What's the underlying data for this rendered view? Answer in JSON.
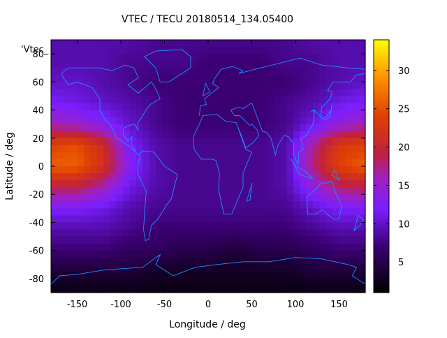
{
  "chart_data": {
    "type": "heatmap",
    "title": "VTEC / TECU 20180514_134.05400",
    "xlabel": "Longitude / deg",
    "ylabel": "Latitude / deg",
    "series_key": "'Vtec_",
    "xlim": [
      -180,
      180
    ],
    "ylim": [
      -90,
      90
    ],
    "xticks": [
      -150,
      -100,
      -50,
      0,
      50,
      100,
      150
    ],
    "yticks": [
      -80,
      -60,
      -40,
      -20,
      0,
      20,
      40,
      60,
      80
    ],
    "colorbar": {
      "range": [
        1,
        34
      ],
      "ticks": [
        5,
        10,
        15,
        20,
        25,
        30
      ],
      "colormap": "black-purple-red-orange-yellow"
    },
    "overlay": "coastlines",
    "coastline_color": "#1e90ff",
    "colors": {
      "low": "#000000",
      "mid": "#8a2be2",
      "high": "#ffff00"
    },
    "field_model": {
      "description_values_at_grid": true,
      "lon": [
        -180,
        -150,
        -120,
        -90,
        -60,
        -30,
        0,
        30,
        60,
        90,
        120,
        150,
        180
      ],
      "lat": [
        90,
        75,
        60,
        45,
        30,
        15,
        0,
        -15,
        -30,
        -45,
        -60,
        -75,
        -90
      ],
      "values": [
        [
          9,
          9,
          9,
          9,
          8,
          8,
          8,
          8,
          8,
          8,
          9,
          9,
          9
        ],
        [
          9,
          9,
          9,
          8,
          8,
          8,
          7,
          7,
          7,
          8,
          8,
          9,
          9
        ],
        [
          10,
          10,
          9,
          8,
          7,
          7,
          7,
          7,
          7,
          7,
          8,
          9,
          10
        ],
        [
          12,
          11,
          10,
          9,
          8,
          7,
          7,
          7,
          7,
          8,
          9,
          11,
          12
        ],
        [
          16,
          15,
          13,
          10,
          8,
          7,
          7,
          7,
          7,
          8,
          11,
          14,
          16
        ],
        [
          24,
          25,
          21,
          12,
          9,
          8,
          8,
          8,
          8,
          9,
          17,
          23,
          24
        ],
        [
          26,
          26,
          22,
          13,
          9,
          8,
          8,
          8,
          8,
          9,
          18,
          24,
          26
        ],
        [
          19,
          19,
          16,
          11,
          9,
          8,
          8,
          8,
          8,
          9,
          14,
          18,
          19
        ],
        [
          12,
          12,
          11,
          9,
          8,
          8,
          8,
          8,
          8,
          8,
          10,
          12,
          12
        ],
        [
          9,
          9,
          9,
          8,
          7,
          7,
          7,
          7,
          7,
          7,
          8,
          9,
          9
        ],
        [
          7,
          7,
          7,
          6,
          6,
          5,
          5,
          4,
          5,
          5,
          6,
          7,
          7
        ],
        [
          4,
          4,
          4,
          4,
          3,
          3,
          3,
          3,
          3,
          3,
          4,
          4,
          4
        ],
        [
          2,
          2,
          2,
          2,
          2,
          2,
          2,
          2,
          2,
          2,
          2,
          2,
          2
        ]
      ]
    }
  }
}
